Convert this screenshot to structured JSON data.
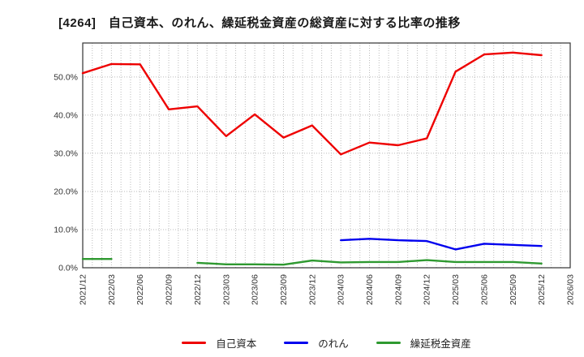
{
  "title": "[4264]　自己資本、のれん、繰延税金資産の総資産に対する比率の推移",
  "chart_data": {
    "type": "line",
    "title": "[4264]　自己資本、のれん、繰延税金資産の総資産に対する比率の推移",
    "categories": [
      "2021/12",
      "2022/03",
      "2022/06",
      "2022/09",
      "2022/12",
      "2023/03",
      "2023/06",
      "2023/09",
      "2023/12",
      "2024/03",
      "2024/06",
      "2024/09",
      "2024/12",
      "2025/03",
      "2025/06",
      "2025/09",
      "2025/12",
      "2026/03"
    ],
    "series": [
      {
        "name": "自己資本",
        "color": "#ee0000",
        "values": [
          51.0,
          53.4,
          53.3,
          41.5,
          42.3,
          34.5,
          40.2,
          34.1,
          37.3,
          29.7,
          32.8,
          32.1,
          33.9,
          51.4,
          55.9,
          56.4,
          55.7,
          null
        ]
      },
      {
        "name": "のれん",
        "color": "#0000ee",
        "values": [
          null,
          null,
          null,
          null,
          null,
          null,
          null,
          null,
          null,
          7.2,
          7.6,
          7.2,
          7.0,
          4.8,
          6.3,
          6.0,
          5.7,
          null
        ]
      },
      {
        "name": "繰延税金資産",
        "color": "#2e9930",
        "values": [
          2.3,
          2.3,
          null,
          null,
          1.3,
          0.9,
          0.9,
          0.8,
          1.9,
          1.4,
          1.5,
          1.5,
          2.0,
          1.5,
          1.5,
          1.5,
          1.1,
          null
        ]
      }
    ],
    "xlabel": "",
    "ylabel": "",
    "ylim": [
      0,
      58.9
    ],
    "yticks": [
      0,
      10,
      20,
      30,
      40,
      50
    ],
    "ytick_labels": [
      "0.0%",
      "10.0%",
      "20.0%",
      "30.0%",
      "40.0%",
      "50.0%"
    ],
    "x_months_per_interval": 3,
    "grid": true,
    "grid_style": "dotted",
    "legend_position": "bottom",
    "x_tick_rotation": 90
  },
  "legend": {
    "items": [
      {
        "label": "自己資本",
        "color": "#ee0000"
      },
      {
        "label": "のれん",
        "color": "#0000ee"
      },
      {
        "label": "繰延税金資産",
        "color": "#2e9930"
      }
    ]
  },
  "colors": {
    "background": "#ffffff",
    "grid": "#bbbbbb",
    "axis_border": "#333333",
    "tick_label": "#333333",
    "title": "#1a1a1a"
  }
}
